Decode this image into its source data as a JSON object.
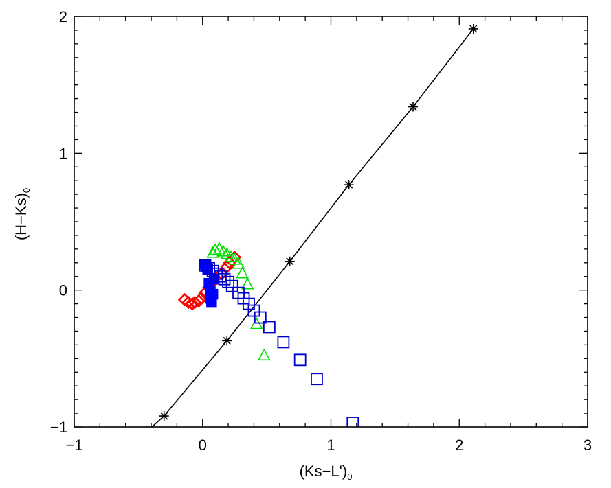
{
  "chart_data": {
    "type": "scatter",
    "title": "",
    "xlabel": "(Ks−L')",
    "xlabel_subscript": "0",
    "ylabel": "(H−Ks)",
    "ylabel_subscript": "0",
    "xlim": [
      -1,
      3
    ],
    "ylim": [
      -1,
      2
    ],
    "xticks": [
      -1,
      0,
      1,
      2,
      3
    ],
    "yticks": [
      -1,
      0,
      1,
      2
    ],
    "xtick_labels": [
      "−1",
      "0",
      "1",
      "2",
      "3"
    ],
    "ytick_labels": [
      "−1",
      "0",
      "1",
      "2"
    ],
    "grid": false,
    "series": [
      {
        "marker": "plus",
        "color": "#000000",
        "line": true,
        "x": [
          -0.43,
          -0.3,
          0.19,
          0.68,
          1.14,
          1.64,
          2.11
        ],
        "y": [
          -1.03,
          -0.92,
          -0.37,
          0.21,
          0.77,
          1.34,
          1.91
        ]
      },
      {
        "marker": "diamond",
        "color": "#ff0000",
        "x": [
          -0.14,
          -0.11,
          -0.08,
          -0.06,
          -0.03,
          -0.01,
          0.02,
          0.05,
          0.08,
          0.15,
          0.19,
          0.21,
          0.25
        ],
        "y": [
          -0.07,
          -0.09,
          -0.1,
          -0.09,
          -0.08,
          -0.06,
          -0.02,
          0.02,
          0.06,
          0.12,
          0.17,
          0.2,
          0.24
        ]
      },
      {
        "marker": "filled-square",
        "color": "#0000ff",
        "x": [
          0.02,
          0.03,
          0.04,
          0.05,
          0.06,
          0.06,
          0.07,
          0.08,
          0.09
        ],
        "y": [
          0.19,
          0.17,
          0.15,
          0.05,
          -0.01,
          -0.06,
          -0.09,
          -0.03,
          0.08
        ]
      },
      {
        "marker": "triangle",
        "color": "#00dd00",
        "x": [
          0.08,
          0.1,
          0.13,
          0.16,
          0.19,
          0.22,
          0.25,
          0.28,
          0.31,
          0.35,
          0.42,
          0.48
        ],
        "y": [
          0.27,
          0.29,
          0.3,
          0.28,
          0.26,
          0.24,
          0.22,
          0.19,
          0.12,
          0.04,
          -0.25,
          -0.48
        ]
      },
      {
        "marker": "open-square",
        "color": "#0000cc",
        "x": [
          0.02,
          0.05,
          0.08,
          0.11,
          0.14,
          0.17,
          0.2,
          0.23,
          0.28,
          0.32,
          0.36,
          0.4,
          0.45,
          0.52,
          0.63,
          0.76,
          0.89,
          1.17
        ],
        "y": [
          0.18,
          0.16,
          0.14,
          0.12,
          0.1,
          0.08,
          0.06,
          0.03,
          -0.02,
          -0.06,
          -0.1,
          -0.15,
          -0.2,
          -0.27,
          -0.38,
          -0.51,
          -0.65,
          -0.97
        ]
      }
    ]
  }
}
